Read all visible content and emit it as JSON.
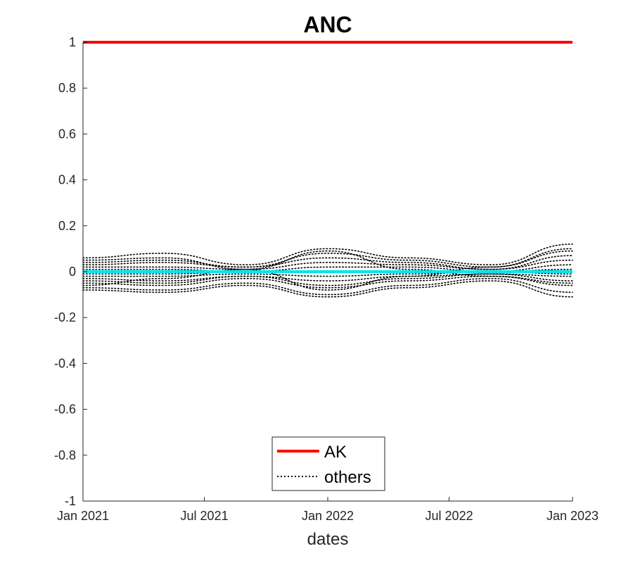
{
  "chart_data": {
    "type": "line",
    "title": "ANC",
    "xlabel": "dates",
    "ylabel": "",
    "x_ticks": [
      "Jan 2021",
      "Jul 2021",
      "Jan 2022",
      "Jul 2022",
      "Jan 2023"
    ],
    "y_ticks": [
      "1",
      "0.8",
      "0.6",
      "0.4",
      "0.2",
      "0",
      "-0.2",
      "-0.4",
      "-0.6",
      "-0.8",
      "-1"
    ],
    "xlim": [
      "2021-01-01",
      "2023-01-01"
    ],
    "ylim": [
      -1,
      1
    ],
    "grid": false,
    "legend": {
      "position": "bottom-center",
      "entries": [
        {
          "label": "AK",
          "color": "#ff0000",
          "style": "solid"
        },
        {
          "label": "others",
          "color": "#000000",
          "style": "dotted"
        }
      ]
    },
    "series": [
      {
        "name": "AK",
        "color": "#ff0000",
        "style": "solid",
        "x": [
          "2021-01-01",
          "2023-01-01"
        ],
        "y": [
          1,
          1
        ]
      },
      {
        "color": "#00e5ee",
        "style": "solid",
        "x": [
          "2021-01-01",
          "2023-01-01"
        ],
        "y": [
          0,
          0
        ]
      },
      {
        "name": "others",
        "color": "#000000",
        "style": "dotted",
        "x": [
          "2021-01-01",
          "2021-05-01",
          "2021-09-01",
          "2022-01-01",
          "2022-05-01",
          "2022-09-01",
          "2023-01-01"
        ],
        "y": [
          0.06,
          0.08,
          0.03,
          0.1,
          0.06,
          0.03,
          0.12
        ]
      },
      {
        "name": "others",
        "color": "#000000",
        "style": "dotted",
        "x": [
          "2021-01-01",
          "2021-05-01",
          "2021-09-01",
          "2022-01-01",
          "2022-05-01",
          "2022-09-01",
          "2023-01-01"
        ],
        "y": [
          0.04,
          0.05,
          0.02,
          0.08,
          0.05,
          0.02,
          0.09
        ]
      },
      {
        "name": "others",
        "color": "#000000",
        "style": "dotted",
        "x": [
          "2021-01-01",
          "2021-05-01",
          "2021-09-01",
          "2022-01-01",
          "2022-05-01",
          "2022-09-01",
          "2023-01-01"
        ],
        "y": [
          0.03,
          0.04,
          0.02,
          0.06,
          0.04,
          0.01,
          0.07
        ]
      },
      {
        "name": "others",
        "color": "#000000",
        "style": "dotted",
        "x": [
          "2021-01-01",
          "2021-05-01",
          "2021-09-01",
          "2022-01-01",
          "2022-05-01",
          "2022-09-01",
          "2023-01-01"
        ],
        "y": [
          0.02,
          0.02,
          0.01,
          0.04,
          0.03,
          0.01,
          0.05
        ]
      },
      {
        "name": "others",
        "color": "#000000",
        "style": "dotted",
        "x": [
          "2021-01-01",
          "2021-05-01",
          "2021-09-01",
          "2022-01-01",
          "2022-05-01",
          "2022-09-01",
          "2023-01-01"
        ],
        "y": [
          0.01,
          0.01,
          0.0,
          0.02,
          0.02,
          0.0,
          0.03
        ]
      },
      {
        "name": "others",
        "color": "#000000",
        "style": "dotted",
        "x": [
          "2021-01-01",
          "2021-05-01",
          "2021-09-01",
          "2022-01-01",
          "2022-05-01",
          "2022-09-01",
          "2023-01-01"
        ],
        "y": [
          -0.01,
          -0.01,
          0.0,
          0.0,
          0.0,
          0.0,
          0.01
        ]
      },
      {
        "name": "others",
        "color": "#000000",
        "style": "dotted",
        "x": [
          "2021-01-01",
          "2021-05-01",
          "2021-09-01",
          "2022-01-01",
          "2022-05-01",
          "2022-09-01",
          "2023-01-01"
        ],
        "y": [
          -0.02,
          -0.02,
          -0.01,
          -0.02,
          -0.01,
          0.0,
          -0.01
        ]
      },
      {
        "name": "others",
        "color": "#000000",
        "style": "dotted",
        "x": [
          "2021-01-01",
          "2021-05-01",
          "2021-09-01",
          "2022-01-01",
          "2022-05-01",
          "2022-09-01",
          "2023-01-01"
        ],
        "y": [
          -0.03,
          -0.04,
          -0.02,
          -0.04,
          -0.02,
          -0.01,
          -0.02
        ]
      },
      {
        "name": "others",
        "color": "#000000",
        "style": "dotted",
        "x": [
          "2021-01-01",
          "2021-05-01",
          "2021-09-01",
          "2022-01-01",
          "2022-05-01",
          "2022-09-01",
          "2023-01-01"
        ],
        "y": [
          -0.04,
          -0.05,
          -0.02,
          -0.06,
          -0.03,
          -0.01,
          -0.04
        ]
      },
      {
        "name": "others",
        "color": "#000000",
        "style": "dotted",
        "x": [
          "2021-01-01",
          "2021-05-01",
          "2021-09-01",
          "2022-01-01",
          "2022-05-01",
          "2022-09-01",
          "2023-01-01"
        ],
        "y": [
          -0.05,
          -0.06,
          -0.03,
          -0.07,
          -0.04,
          -0.02,
          -0.06
        ]
      },
      {
        "name": "others",
        "color": "#000000",
        "style": "dotted",
        "x": [
          "2021-01-01",
          "2021-05-01",
          "2021-09-01",
          "2022-01-01",
          "2022-05-01",
          "2022-09-01",
          "2023-01-01"
        ],
        "y": [
          -0.07,
          -0.08,
          -0.05,
          -0.1,
          -0.06,
          -0.03,
          -0.09
        ]
      },
      {
        "name": "others",
        "color": "#000000",
        "style": "dotted",
        "x": [
          "2021-01-01",
          "2021-05-01",
          "2021-09-01",
          "2022-01-01",
          "2022-05-01",
          "2022-09-01",
          "2023-01-01"
        ],
        "y": [
          -0.08,
          -0.09,
          -0.06,
          -0.11,
          -0.07,
          -0.04,
          -0.11
        ]
      },
      {
        "name": "others",
        "color": "#000000",
        "style": "dotted",
        "x": [
          "2021-01-01",
          "2021-05-01",
          "2021-09-01",
          "2022-01-01",
          "2022-05-01",
          "2022-09-01",
          "2023-01-01"
        ],
        "y": [
          0.05,
          0.06,
          0.01,
          0.09,
          0.01,
          -0.02,
          -0.05
        ]
      },
      {
        "name": "others",
        "color": "#000000",
        "style": "dotted",
        "x": [
          "2021-01-01",
          "2021-05-01",
          "2021-09-01",
          "2022-01-01",
          "2022-05-01",
          "2022-09-01",
          "2023-01-01"
        ],
        "y": [
          -0.06,
          -0.03,
          0.01,
          -0.08,
          -0.02,
          0.02,
          0.1
        ]
      }
    ]
  }
}
